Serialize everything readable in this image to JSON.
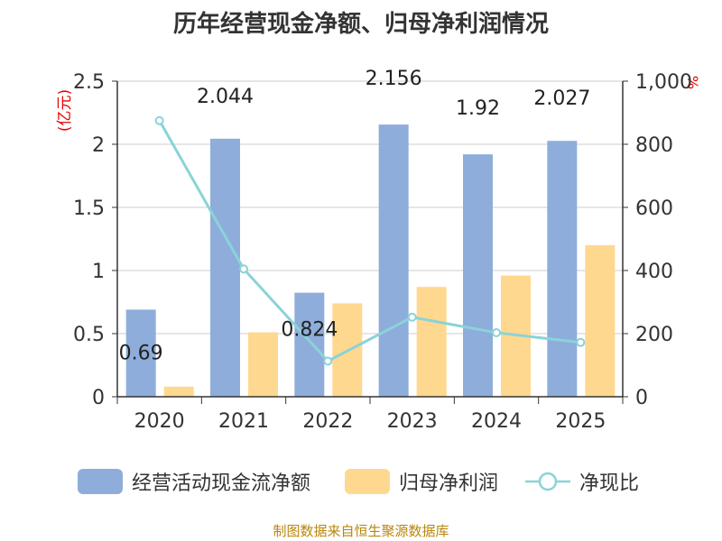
{
  "title": "历年经营现金净额、归母净利润情况",
  "source": "制图数据来自恒生聚源数据库",
  "unit_left": "(亿元)",
  "unit_right": "%",
  "colors": {
    "cash": "#8eaddb",
    "profit": "#ffd88f",
    "ratio": "#8ad3d8",
    "axis": "#333333",
    "grid": "#cccccc",
    "unit": "#e60000"
  },
  "legend": [
    {
      "key": "cash",
      "label": "经营活动现金流净额"
    },
    {
      "key": "profit",
      "label": "归母净利润"
    },
    {
      "key": "ratio",
      "label": "净现比"
    }
  ],
  "chart_data": {
    "type": "bar",
    "categories": [
      "2020",
      "2021",
      "2022",
      "2023",
      "2024",
      "2025"
    ],
    "series": [
      {
        "name": "经营活动现金流净额",
        "type": "bar",
        "axis": "left",
        "values": [
          0.69,
          2.044,
          0.824,
          2.156,
          1.92,
          2.027
        ],
        "labels": [
          "0.69",
          "2.044",
          "0.824",
          "2.156",
          "1.92",
          "2.027"
        ]
      },
      {
        "name": "归母净利润",
        "type": "bar",
        "axis": "left",
        "values": [
          0.08,
          0.51,
          0.74,
          0.87,
          0.96,
          1.2
        ]
      },
      {
        "name": "净现比",
        "type": "line",
        "axis": "right",
        "values": [
          875,
          405,
          113,
          252,
          203,
          172
        ]
      }
    ],
    "y_left": {
      "min": 0,
      "max": 2.5,
      "ticks": [
        "0",
        "0.5",
        "1",
        "1.5",
        "2",
        "2.5"
      ],
      "tick_values": [
        0,
        0.5,
        1,
        1.5,
        2,
        2.5
      ]
    },
    "y_right": {
      "min": 0,
      "max": 1000,
      "ticks": [
        "0",
        "200",
        "400",
        "600",
        "800",
        "1,000"
      ],
      "tick_values": [
        0,
        200,
        400,
        600,
        800,
        1000
      ]
    },
    "grid": true,
    "legend_position": "bottom"
  }
}
